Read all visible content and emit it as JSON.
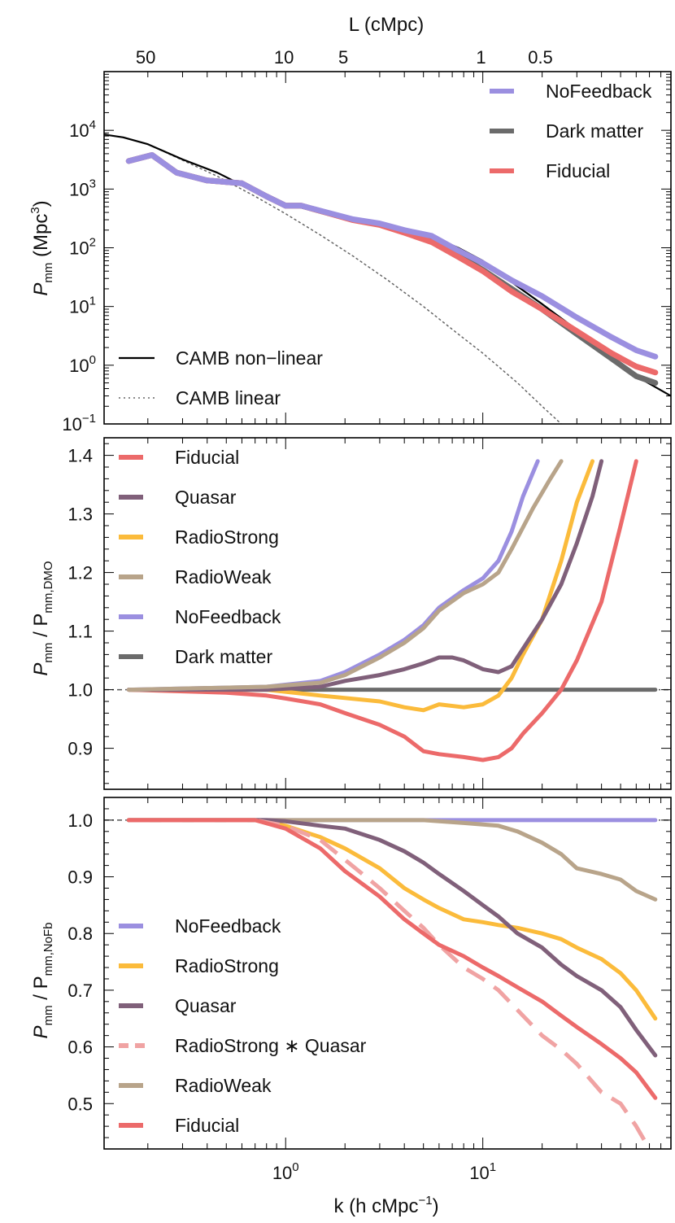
{
  "figure": {
    "top_axis_title": "L (cMpc)",
    "top_axis_ticks": [
      "50",
      "10",
      "5",
      "1",
      "0.5"
    ],
    "bottom_axis_title": "k (h cMpc",
    "bottom_axis_title_sup": "−1",
    "bottom_axis_title_end": ")"
  },
  "colors": {
    "nofeedback": "#9b8fe0",
    "darkmatter": "#6b6b6b",
    "fiducial": "#ec6a6a",
    "quasar": "#80607a",
    "radiostrong": "#fbbb3b",
    "radioweak": "#b8a48a",
    "radiostrong_quasar": "#f0a3a3",
    "camb": "#000000"
  },
  "chart_data": [
    {
      "type": "line",
      "panel": "power-spectrum",
      "ylabel_main": "P",
      "ylabel_sub": "mm",
      "ylabel_unit": " (Mpc",
      "ylabel_unit_sup": "3",
      "ylabel_unit_end": ")",
      "xscale": "log",
      "yscale": "log",
      "xlim": [
        0.12,
        90
      ],
      "ylim": [
        0.1,
        100000
      ],
      "yticks": [
        {
          "value": 0.1,
          "mant": "10",
          "exp": "−1"
        },
        {
          "value": 1,
          "mant": "10",
          "exp": "0"
        },
        {
          "value": 10,
          "mant": "10",
          "exp": "1"
        },
        {
          "value": 100,
          "mant": "10",
          "exp": "2"
        },
        {
          "value": 1000,
          "mant": "10",
          "exp": "3"
        },
        {
          "value": 10000,
          "mant": "10",
          "exp": "4"
        }
      ],
      "legend_top": [
        {
          "label": "NoFeedback",
          "key": "nofeedback"
        },
        {
          "label": "Dark matter",
          "key": "darkmatter"
        },
        {
          "label": "Fiducial",
          "key": "fiducial"
        }
      ],
      "legend_bottom": [
        {
          "label": "CAMB non−linear",
          "style": "solid"
        },
        {
          "label": "CAMB linear",
          "style": "dotted"
        }
      ],
      "series": [
        {
          "name": "CAMB linear",
          "key": "camb",
          "style": "dotted",
          "x": [
            0.12,
            0.15,
            0.2,
            0.3,
            0.45,
            0.7,
            1.0,
            1.5,
            2.2,
            3.3,
            5,
            7.5,
            10,
            15,
            20,
            25
          ],
          "y": [
            8500,
            7600,
            5800,
            3100,
            1650,
            750,
            380,
            165,
            72,
            28,
            10,
            3.4,
            1.6,
            0.5,
            0.2,
            0.1
          ]
        },
        {
          "name": "CAMB non-linear",
          "key": "camb",
          "style": "solid",
          "x": [
            0.12,
            0.15,
            0.2,
            0.3,
            0.45,
            0.7,
            1.0,
            1.5,
            2.2,
            3.3,
            5,
            7.5,
            10,
            15,
            20,
            30,
            45,
            60,
            90
          ],
          "y": [
            8500,
            7600,
            5800,
            3200,
            1900,
            900,
            560,
            400,
            310,
            250,
            180,
            100,
            60,
            22,
            11,
            4,
            1.4,
            0.65,
            0.3
          ]
        },
        {
          "name": "Dark matter",
          "key": "darkmatter",
          "style": "solid",
          "x": [
            0.16,
            0.21,
            0.28,
            0.4,
            0.6,
            0.8,
            1.0,
            1.2,
            1.6,
            2.2,
            3.0,
            4.0,
            5.5,
            7.5,
            10,
            14,
            20,
            30,
            45,
            60,
            75
          ],
          "y": [
            3000,
            3800,
            1900,
            1400,
            1250,
            750,
            520,
            520,
            400,
            300,
            250,
            190,
            140,
            75,
            42,
            20,
            9,
            3.4,
            1.3,
            0.65,
            0.5
          ]
        },
        {
          "name": "Fiducial",
          "key": "fiducial",
          "style": "solid",
          "x": [
            0.16,
            0.21,
            0.28,
            0.4,
            0.6,
            0.8,
            1.0,
            1.2,
            1.6,
            2.2,
            3.0,
            4.0,
            5.5,
            7.5,
            10,
            14,
            20,
            30,
            45,
            60,
            75
          ],
          "y": [
            3000,
            3800,
            1900,
            1400,
            1250,
            750,
            520,
            520,
            400,
            295,
            245,
            180,
            125,
            70,
            40,
            18,
            9,
            3.8,
            1.6,
            0.95,
            0.75
          ]
        },
        {
          "name": "NoFeedback",
          "key": "nofeedback",
          "style": "solid",
          "x": [
            0.16,
            0.21,
            0.28,
            0.4,
            0.6,
            0.8,
            1.0,
            1.2,
            1.6,
            2.2,
            3.0,
            4.0,
            5.5,
            7.5,
            10,
            14,
            20,
            30,
            45,
            60,
            75
          ],
          "y": [
            3000,
            3800,
            1900,
            1400,
            1250,
            750,
            520,
            520,
            405,
            305,
            260,
            200,
            160,
            90,
            55,
            28,
            15,
            6.5,
            3.0,
            1.8,
            1.4
          ]
        }
      ]
    },
    {
      "type": "line",
      "panel": "ratio-dmo",
      "ylabel_main": "P",
      "ylabel_sub": "mm",
      "ylabel_mid": " / P",
      "ylabel_sub2": "mm,DMO",
      "xscale": "log",
      "yscale": "linear",
      "xlim": [
        0.12,
        90
      ],
      "ylim": [
        0.83,
        1.43
      ],
      "yticks": [
        0.9,
        1.0,
        1.1,
        1.2,
        1.3,
        1.4
      ],
      "ytick_labels": [
        "0.9",
        "1.0",
        "1.1",
        "1.2",
        "1.3",
        "1.4"
      ],
      "legend": [
        {
          "label": "Fiducial",
          "key": "fiducial"
        },
        {
          "label": "Quasar",
          "key": "quasar"
        },
        {
          "label": "RadioStrong",
          "key": "radiostrong"
        },
        {
          "label": "RadioWeak",
          "key": "radioweak"
        },
        {
          "label": "NoFeedback",
          "key": "nofeedback"
        },
        {
          "label": "Dark matter",
          "key": "darkmatter"
        }
      ],
      "series": [
        {
          "name": "Dark matter",
          "key": "darkmatter",
          "x": [
            0.16,
            75
          ],
          "y": [
            1.0,
            1.0
          ]
        },
        {
          "name": "Fiducial",
          "key": "fiducial",
          "x": [
            0.16,
            0.5,
            0.8,
            1.0,
            1.5,
            2.0,
            3.0,
            4.0,
            5.0,
            6.0,
            8.0,
            10,
            12,
            14,
            16,
            20,
            25,
            30,
            40,
            50,
            60
          ],
          "y": [
            1.0,
            0.995,
            0.99,
            0.985,
            0.975,
            0.96,
            0.94,
            0.92,
            0.895,
            0.89,
            0.885,
            0.88,
            0.885,
            0.9,
            0.925,
            0.96,
            1.0,
            1.05,
            1.15,
            1.28,
            1.39
          ]
        },
        {
          "name": "RadioStrong",
          "key": "radiostrong",
          "x": [
            0.16,
            0.8,
            1.5,
            3.0,
            4.0,
            5.0,
            6.0,
            8.0,
            10,
            12,
            14,
            16,
            20,
            25,
            30,
            36
          ],
          "y": [
            1.0,
            1.0,
            0.99,
            0.98,
            0.97,
            0.965,
            0.975,
            0.97,
            0.975,
            0.99,
            1.02,
            1.06,
            1.12,
            1.22,
            1.32,
            1.39
          ]
        },
        {
          "name": "Quasar",
          "key": "quasar",
          "x": [
            0.16,
            0.8,
            1.5,
            2.0,
            3.0,
            4.0,
            5.0,
            6.0,
            7.0,
            8.0,
            10,
            12,
            14,
            16,
            20,
            25,
            30,
            36,
            40
          ],
          "y": [
            1.0,
            1.0,
            1.005,
            1.015,
            1.025,
            1.035,
            1.045,
            1.055,
            1.055,
            1.05,
            1.035,
            1.03,
            1.04,
            1.07,
            1.12,
            1.18,
            1.25,
            1.33,
            1.39
          ]
        },
        {
          "name": "NoFeedback",
          "key": "nofeedback",
          "x": [
            0.16,
            0.8,
            1.5,
            2.0,
            3.0,
            4.0,
            5.0,
            6.0,
            8.0,
            10,
            12,
            14,
            16,
            19
          ],
          "y": [
            1.0,
            1.005,
            1.015,
            1.03,
            1.06,
            1.085,
            1.11,
            1.14,
            1.17,
            1.19,
            1.22,
            1.27,
            1.33,
            1.39
          ]
        },
        {
          "name": "RadioWeak",
          "key": "radioweak",
          "x": [
            0.16,
            0.8,
            1.5,
            2.0,
            3.0,
            4.0,
            5.0,
            6.0,
            8.0,
            10,
            12,
            14,
            18,
            22,
            25
          ],
          "y": [
            1.0,
            1.005,
            1.012,
            1.025,
            1.055,
            1.08,
            1.105,
            1.135,
            1.165,
            1.18,
            1.2,
            1.24,
            1.31,
            1.36,
            1.39
          ]
        }
      ]
    },
    {
      "type": "line",
      "panel": "ratio-nofb",
      "ylabel_main": "P",
      "ylabel_sub": "mm",
      "ylabel_mid": " / P",
      "ylabel_sub2": "mm,NoFb",
      "xscale": "log",
      "yscale": "linear",
      "xlabel": "k (h cMpc−1)",
      "xlim": [
        0.12,
        90
      ],
      "ylim": [
        0.42,
        1.04
      ],
      "yticks": [
        0.5,
        0.6,
        0.7,
        0.8,
        0.9,
        1.0
      ],
      "ytick_labels": [
        "0.5",
        "0.6",
        "0.7",
        "0.8",
        "0.9",
        "1.0"
      ],
      "xticks": [
        {
          "value": 1,
          "mant": "10",
          "exp": "0"
        },
        {
          "value": 10,
          "mant": "10",
          "exp": "1"
        }
      ],
      "legend": [
        {
          "label": "NoFeedback",
          "key": "nofeedback",
          "style": "solid"
        },
        {
          "label": "RadioStrong",
          "key": "radiostrong",
          "style": "solid"
        },
        {
          "label": "Quasar",
          "key": "quasar",
          "style": "solid"
        },
        {
          "label": "RadioStrong ∗ Quasar",
          "key": "radiostrong_quasar",
          "style": "dashed"
        },
        {
          "label": "RadioWeak",
          "key": "radioweak",
          "style": "solid"
        },
        {
          "label": "Fiducial",
          "key": "fiducial",
          "style": "solid"
        }
      ],
      "series": [
        {
          "name": "NoFeedback",
          "key": "nofeedback",
          "style": "solid",
          "x": [
            0.16,
            75
          ],
          "y": [
            1.0,
            1.0
          ]
        },
        {
          "name": "RadioWeak",
          "key": "radioweak",
          "style": "solid",
          "x": [
            0.16,
            1.0,
            2.0,
            5.0,
            8.0,
            12,
            15,
            20,
            25,
            30,
            40,
            50,
            60,
            75
          ],
          "y": [
            1.0,
            1.0,
            1.0,
            1.0,
            0.995,
            0.99,
            0.98,
            0.96,
            0.94,
            0.915,
            0.905,
            0.895,
            0.875,
            0.86
          ]
        },
        {
          "name": "RadioStrong",
          "key": "radiostrong",
          "style": "solid",
          "x": [
            0.16,
            0.7,
            1.0,
            1.5,
            2.0,
            3.0,
            4.0,
            5.0,
            6.0,
            8.0,
            10,
            12,
            15,
            20,
            25,
            30,
            40,
            50,
            60,
            75
          ],
          "y": [
            1.0,
            1.0,
            0.99,
            0.97,
            0.95,
            0.915,
            0.88,
            0.86,
            0.845,
            0.825,
            0.82,
            0.815,
            0.81,
            0.8,
            0.79,
            0.775,
            0.755,
            0.73,
            0.7,
            0.65
          ]
        },
        {
          "name": "Quasar",
          "key": "quasar",
          "style": "solid",
          "x": [
            0.16,
            0.8,
            1.0,
            1.5,
            2.0,
            3.0,
            4.0,
            5.0,
            6.0,
            8.0,
            10,
            12,
            15,
            20,
            25,
            30,
            40,
            50,
            60,
            75
          ],
          "y": [
            1.0,
            1.0,
            0.998,
            0.99,
            0.985,
            0.965,
            0.945,
            0.925,
            0.905,
            0.875,
            0.85,
            0.83,
            0.8,
            0.775,
            0.745,
            0.725,
            0.7,
            0.67,
            0.63,
            0.585
          ]
        },
        {
          "name": "RadioStrong * Quasar",
          "key": "radiostrong_quasar",
          "style": "dashed",
          "x": [
            0.16,
            0.7,
            1.0,
            1.5,
            2.0,
            3.0,
            4.0,
            5.0,
            6.0,
            8.0,
            10,
            12,
            15,
            20,
            25,
            30,
            40,
            50,
            60,
            70
          ],
          "y": [
            1.0,
            1.0,
            0.99,
            0.965,
            0.93,
            0.88,
            0.84,
            0.81,
            0.78,
            0.74,
            0.72,
            0.7,
            0.665,
            0.62,
            0.595,
            0.57,
            0.52,
            0.5,
            0.46,
            0.42
          ]
        },
        {
          "name": "Fiducial",
          "key": "fiducial",
          "style": "solid",
          "x": [
            0.16,
            0.7,
            1.0,
            1.5,
            2.0,
            3.0,
            4.0,
            5.0,
            6.0,
            8.0,
            10,
            12,
            15,
            20,
            25,
            30,
            40,
            50,
            60,
            75
          ],
          "y": [
            1.0,
            1.0,
            0.985,
            0.95,
            0.91,
            0.865,
            0.825,
            0.8,
            0.78,
            0.76,
            0.74,
            0.725,
            0.705,
            0.68,
            0.655,
            0.635,
            0.605,
            0.58,
            0.555,
            0.51
          ]
        }
      ]
    }
  ]
}
